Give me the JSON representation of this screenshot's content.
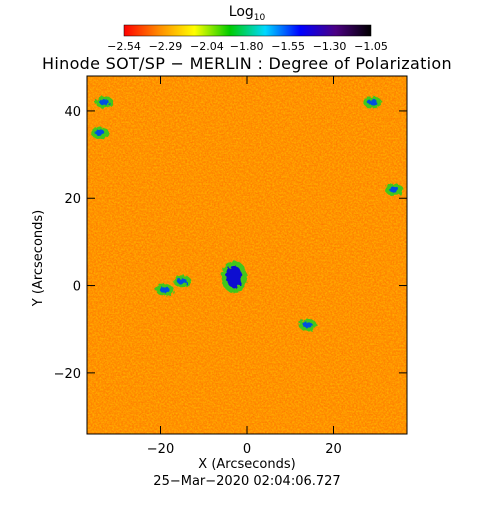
{
  "colorbar": {
    "title_main": "Log",
    "title_sub": "10",
    "tick_labels": [
      "−2.54",
      "−2.29",
      "−2.04",
      "−1.80",
      "−1.55",
      "−1.30",
      "−1.05"
    ],
    "colors": [
      "#ff0000",
      "#ff8c00",
      "#ffff00",
      "#00cc00",
      "#00d8ff",
      "#0000ff",
      "#4b0082",
      "#000000"
    ]
  },
  "title": "Hinode SOT/SP − MERLIN : Degree of Polarization",
  "timestamp": "25−Mar−2020 02:04:06.727",
  "chart_data": {
    "type": "heatmap",
    "title": "Hinode SOT/SP − MERLIN : Degree of Polarization",
    "xlabel": "X (Arcseconds)",
    "ylabel": "Y (Arcseconds)",
    "xlim": [
      -37,
      37
    ],
    "ylim": [
      -34,
      48
    ],
    "xticks": [
      -20,
      0,
      20
    ],
    "yticks": [
      -20,
      0,
      20,
      40
    ],
    "colorbar_label": "Log10",
    "colorbar_range": [
      -2.54,
      -1.05
    ],
    "colorbar_ticks": [
      -2.54,
      -2.29,
      -2.04,
      -1.8,
      -1.55,
      -1.3,
      -1.05
    ],
    "strong_polarization_patches": [
      {
        "x": -3,
        "y": 2
      },
      {
        "x": -15,
        "y": 1
      },
      {
        "x": -19,
        "y": -1
      },
      {
        "x": 14,
        "y": -9
      },
      {
        "x": -33,
        "y": 42
      },
      {
        "x": -34,
        "y": 35
      },
      {
        "x": 29,
        "y": 42
      },
      {
        "x": 34,
        "y": 22
      }
    ]
  }
}
